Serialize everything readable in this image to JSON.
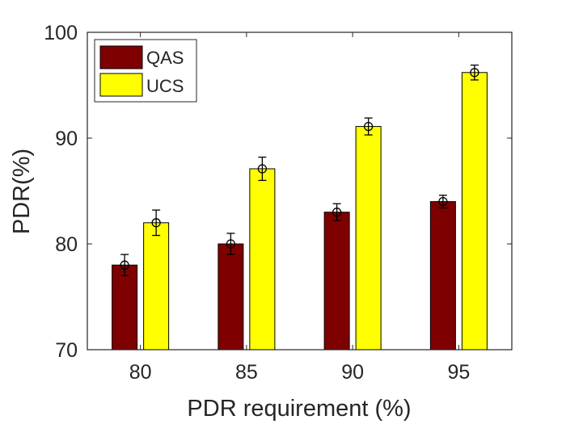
{
  "chart_data": {
    "type": "bar",
    "title": "",
    "xlabel": "PDR requirement (%)",
    "ylabel": "PDR(%)",
    "categories": [
      "80",
      "85",
      "90",
      "95"
    ],
    "ylim": [
      70,
      100
    ],
    "yticks": [
      70,
      80,
      90,
      100
    ],
    "grid": false,
    "legend_position": "top-left",
    "series": [
      {
        "name": "QAS",
        "color": "#7f0000",
        "values": [
          78,
          80,
          83,
          84
        ],
        "error": [
          1.0,
          1.0,
          0.8,
          0.6
        ]
      },
      {
        "name": "UCS",
        "color": "#ffff00",
        "values": [
          82,
          87.1,
          91.1,
          96.2
        ],
        "error": [
          1.2,
          1.1,
          0.8,
          0.7
        ]
      }
    ]
  }
}
